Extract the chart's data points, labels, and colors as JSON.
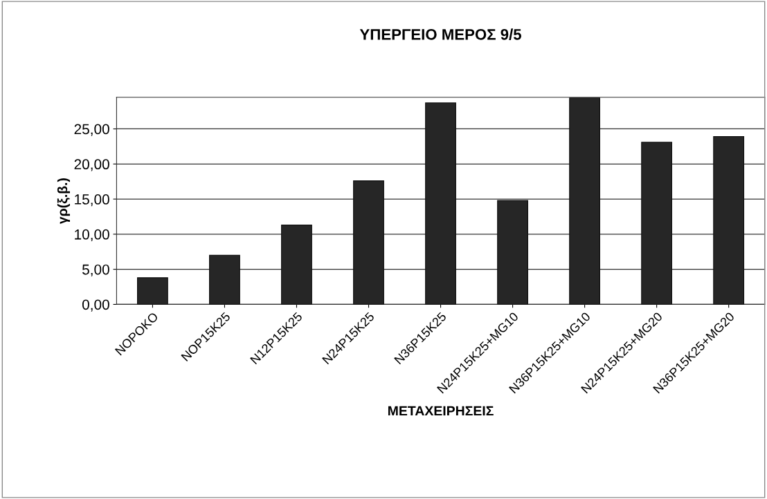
{
  "chart_data": {
    "type": "bar",
    "title": "ΥΠΕΡΓΕΙΟ ΜΕΡΟΣ 9/5",
    "xlabel": "ΜΕΤΑΧΕΙΡΗΣΕΙΣ",
    "ylabel": "γρ(ξ.β.)",
    "categories": [
      "NOPOKO",
      "NOP15K25",
      "N12P15K25",
      "N24P15K25",
      "N36P15K25",
      "N24P15K25+MG10",
      "N36P15K25+MG10",
      "N24P15K25+MG20",
      "N36P15K25+MG20"
    ],
    "values": [
      3.8,
      7.0,
      11.3,
      17.6,
      28.7,
      14.8,
      29.4,
      23.1,
      23.9
    ],
    "color": "#262626",
    "ylim": [
      0,
      29.5
    ],
    "yticks": [
      {
        "value": 0,
        "label": "0,00"
      },
      {
        "value": 5,
        "label": "5,00"
      },
      {
        "value": 10,
        "label": "10,00"
      },
      {
        "value": 15,
        "label": "15,00"
      },
      {
        "value": 20,
        "label": "20,00"
      },
      {
        "value": 25,
        "label": "25,00"
      }
    ],
    "grid": "y",
    "legend": false
  }
}
